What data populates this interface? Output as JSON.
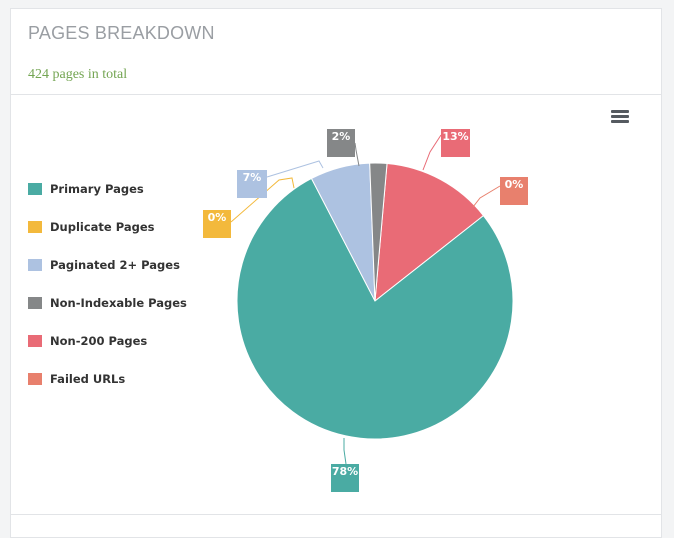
{
  "card": {
    "title": "PAGES BREAKDOWN",
    "subtitle": "424 pages in total",
    "menu_icon": "hamburger-menu-icon"
  },
  "chart_data": {
    "type": "pie",
    "title": "",
    "legend_position": "left",
    "series": [
      {
        "name": "Primary Pages",
        "value": 78,
        "label": "78%",
        "color": "#4aaba3"
      },
      {
        "name": "Duplicate Pages",
        "value": 0,
        "label": "0%",
        "color": "#f3b93c"
      },
      {
        "name": "Paginated 2+ Pages",
        "value": 7,
        "label": "7%",
        "color": "#adc2e1"
      },
      {
        "name": "Non-Indexable Pages",
        "value": 2,
        "label": "2%",
        "color": "#858788"
      },
      {
        "name": "Non-200 Pages",
        "value": 13,
        "label": "13%",
        "color": "#e96b76"
      },
      {
        "name": "Failed URLs",
        "value": 0,
        "label": "0%",
        "color": "#e8806d"
      }
    ]
  }
}
